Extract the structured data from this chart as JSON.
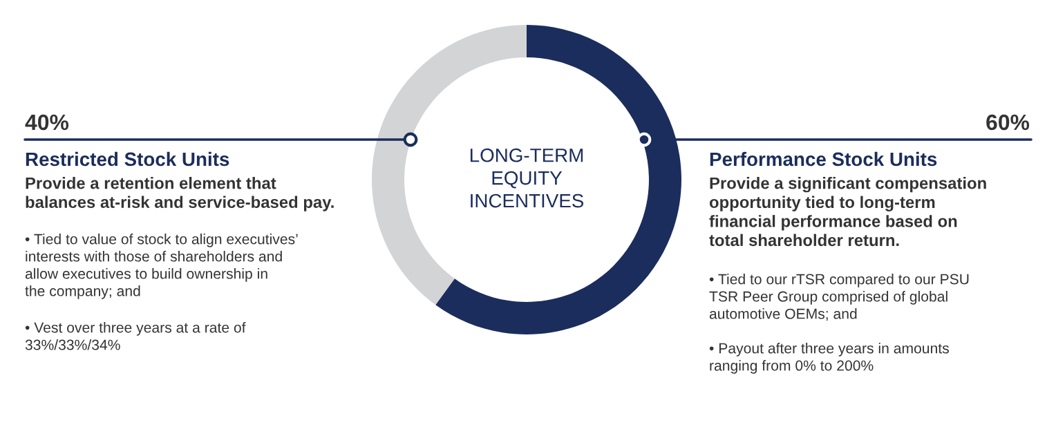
{
  "chart_data": {
    "type": "donut",
    "title": "LONG-TERM\nEQUITY\nINCENTIVES",
    "categories": [
      "Restricted Stock Units",
      "Performance Stock Units"
    ],
    "values": [
      40,
      60
    ],
    "colors": [
      "#d3d4d6",
      "#1b2d5c"
    ],
    "value_labels": [
      "40%",
      "60%"
    ],
    "annotations": [
      "Provide a retention element that\nbalances at-risk and service-based pay.",
      "• Tied to value of stock to align executives’\ninterests with those of shareholders and\nallow executives to build ownership in\nthe company; and",
      "• Vest over three years at a rate of\n33%/33%/34%",
      "Provide a significant compensation\nopportunity tied to long-term\nfinancial performance based on\ntotal shareholder return.",
      "• Tied to our rTSR compared to our PSU\nTSR Peer Group comprised of global\nautomotive OEMs; and",
      "• Payout after three years in amounts\nranging from 0% to 200%"
    ]
  }
}
